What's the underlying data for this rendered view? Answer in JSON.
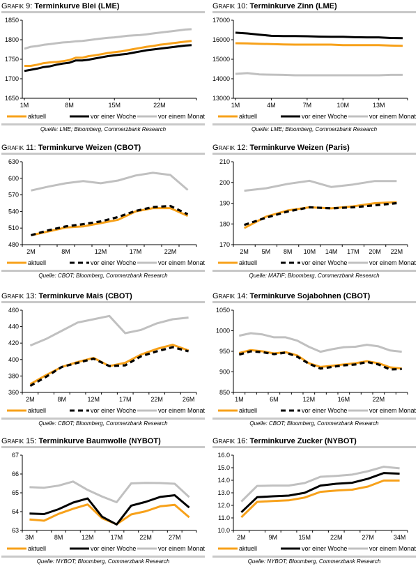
{
  "colors": {
    "aktuell": "#f7a11a",
    "woche": "#000000",
    "monat": "#c0c0c0",
    "rule": "#c8c8c8"
  },
  "legend": {
    "aktuell": "aktuell",
    "woche": "vor einer Woche",
    "monat": "vor einem Monat"
  },
  "chart_data": [
    {
      "id": "g9",
      "type": "line",
      "prefix": "Grafik 9:",
      "title": "Terminkurve Blei (LME)",
      "source": "Quelle: LME; Bloomberg, Commerzbank Research",
      "ylim": [
        1650,
        1850
      ],
      "yticks": [
        1650,
        1700,
        1750,
        1800,
        1850
      ],
      "xlabels": [
        "1M",
        "8M",
        "15M",
        "22M"
      ],
      "xlabel_positions": [
        0,
        7,
        14,
        21
      ],
      "n": 27,
      "centered": false,
      "woche_dashed": false,
      "x": [
        "1M",
        "2M",
        "3M",
        "4M",
        "5M",
        "6M",
        "7M",
        "8M",
        "9M",
        "10M",
        "11M",
        "12M",
        "13M",
        "14M",
        "15M",
        "16M",
        "17M",
        "18M",
        "19M",
        "20M",
        "21M",
        "22M",
        "23M",
        "24M",
        "25M",
        "26M",
        "27M"
      ],
      "series": [
        {
          "name": "aktuell",
          "values": [
            1733,
            1733,
            1736,
            1740,
            1742,
            1743,
            1745,
            1748,
            1754,
            1754,
            1758,
            1760,
            1763,
            1766,
            1768,
            1770,
            1773,
            1776,
            1779,
            1782,
            1784,
            1787,
            1789,
            1791,
            1793,
            1795,
            1797
          ]
        },
        {
          "name": "vor einer Woche",
          "values": [
            1720,
            1723,
            1726,
            1730,
            1732,
            1736,
            1739,
            1741,
            1747,
            1747,
            1749,
            1752,
            1755,
            1758,
            1760,
            1762,
            1764,
            1767,
            1770,
            1773,
            1775,
            1777,
            1779,
            1781,
            1783,
            1785,
            1786
          ]
        },
        {
          "name": "vor einem Monat",
          "values": [
            1777,
            1782,
            1784,
            1787,
            1789,
            1791,
            1793,
            1794,
            1796,
            1797,
            1799,
            1801,
            1803,
            1805,
            1806,
            1808,
            1810,
            1811,
            1812,
            1814,
            1816,
            1818,
            1820,
            1822,
            1824,
            1826,
            1827
          ]
        }
      ]
    },
    {
      "id": "g10",
      "type": "line",
      "prefix": "Grafik 10:",
      "title": "Terminkurve Zinn (LME)",
      "source": "Quelle: LME; Bloomberg, Commerzbank Research",
      "ylim": [
        13000,
        17000
      ],
      "yticks": [
        13000,
        14000,
        15000,
        16000,
        17000
      ],
      "xlabels": [
        "1M",
        "4M",
        "7M",
        "10M",
        "13M"
      ],
      "xlabel_positions": [
        0,
        3,
        6,
        9,
        12
      ],
      "n": 15,
      "centered": false,
      "woche_dashed": false,
      "x": [
        "1M",
        "2M",
        "3M",
        "4M",
        "5M",
        "6M",
        "7M",
        "8M",
        "9M",
        "10M",
        "11M",
        "12M",
        "13M",
        "14M",
        "15M"
      ],
      "series": [
        {
          "name": "aktuell",
          "values": [
            15820,
            15810,
            15790,
            15780,
            15760,
            15750,
            15750,
            15750,
            15750,
            15720,
            15720,
            15720,
            15720,
            15700,
            15690
          ]
        },
        {
          "name": "vor einer Woche",
          "values": [
            16360,
            16320,
            16260,
            16200,
            16190,
            16190,
            16180,
            16160,
            16150,
            16150,
            16130,
            16120,
            16120,
            16090,
            16080
          ]
        },
        {
          "name": "vor einem Monat",
          "values": [
            14250,
            14290,
            14220,
            14210,
            14200,
            14180,
            14180,
            14180,
            14180,
            14180,
            14180,
            14180,
            14180,
            14200,
            14200
          ]
        }
      ]
    },
    {
      "id": "g11",
      "type": "line",
      "prefix": "Grafik 11:",
      "title": "Terminkurve Weizen (CBOT)",
      "source": "Quelle: CBOT; Bloomberg, Commerzbank Research",
      "ylim": [
        480,
        630
      ],
      "yticks": [
        480,
        510,
        540,
        570,
        600,
        630
      ],
      "xlabels": [
        "2M",
        "8M",
        "12M",
        "17M",
        "22M"
      ],
      "xlabel_positions": [
        0,
        2,
        4,
        6,
        8
      ],
      "n": 10,
      "centered": true,
      "woche_dashed": true,
      "x": [
        "2M",
        "5M",
        "8M",
        "10M",
        "12M",
        "15M",
        "17M",
        "20M",
        "22M",
        "25M"
      ],
      "series": [
        {
          "name": "aktuell",
          "values": [
            497,
            504,
            511,
            513,
            519,
            525,
            540,
            546,
            546,
            532
          ]
        },
        {
          "name": "vor einer Woche",
          "values": [
            497,
            506,
            513,
            517,
            522,
            530,
            541,
            548,
            550,
            535
          ]
        },
        {
          "name": "vor einem Monat",
          "values": [
            578,
            585,
            591,
            595,
            591,
            596,
            605,
            610,
            606,
            579
          ]
        }
      ]
    },
    {
      "id": "g12",
      "type": "line",
      "prefix": "Grafik 12:",
      "title": "Terminkurve Weizen (Paris)",
      "source": "Quelle: MATIF; Bloomberg, Commerzbank Research",
      "ylim": [
        170,
        210
      ],
      "yticks": [
        170,
        180,
        190,
        200,
        210
      ],
      "xlabels": [
        "2M",
        "5M",
        "8M",
        "10M",
        "14M",
        "17M",
        "20M",
        "22M"
      ],
      "xlabel_positions": [
        0,
        1,
        2,
        3,
        4,
        5,
        6,
        7
      ],
      "n": 8,
      "centered": true,
      "woche_dashed": true,
      "x": [
        "2M",
        "5M",
        "8M",
        "10M",
        "14M",
        "17M",
        "20M",
        "22M"
      ],
      "series": [
        {
          "name": "aktuell",
          "values": [
            178,
            183.5,
            186.5,
            188,
            187.5,
            188.5,
            190,
            190.5
          ]
        },
        {
          "name": "vor einer Woche",
          "values": [
            179.5,
            183,
            186,
            188,
            187.5,
            188,
            189,
            190
          ]
        },
        {
          "name": "vor einem Monat",
          "values": [
            196,
            197.2,
            199.3,
            200.8,
            197.8,
            199,
            200.7,
            200.7
          ]
        }
      ]
    },
    {
      "id": "g13",
      "type": "line",
      "prefix": "Grafik 13:",
      "title": "Terminkurve Mais (CBOT)",
      "source": "Quelle: CBOT; Bloomberg, Commerzbank Research",
      "ylim": [
        360,
        460
      ],
      "yticks": [
        360,
        380,
        400,
        420,
        440,
        460
      ],
      "xlabels": [
        "2M",
        "8M",
        "12M",
        "17M",
        "22M",
        "26M"
      ],
      "xlabel_positions": [
        0,
        2,
        4,
        6,
        8,
        10
      ],
      "n": 11,
      "centered": true,
      "woche_dashed": true,
      "x": [
        "2M",
        "5M",
        "8M",
        "10M",
        "12M",
        "15M",
        "17M",
        "20M",
        "22M",
        "24M",
        "26M"
      ],
      "series": [
        {
          "name": "aktuell",
          "values": [
            370,
            381,
            391,
            397,
            402,
            392,
            396,
            406,
            413,
            418,
            411
          ]
        },
        {
          "name": "vor einer Woche",
          "values": [
            368,
            379,
            391,
            396,
            401,
            392,
            393,
            404,
            410,
            415,
            410
          ]
        },
        {
          "name": "vor einem Monat",
          "values": [
            417,
            425,
            435,
            445,
            449,
            453,
            432,
            436,
            444,
            449,
            451
          ]
        }
      ]
    },
    {
      "id": "g14",
      "type": "line",
      "prefix": "Grafik 14:",
      "title": "Terminkurve Sojabohnen (CBOT)",
      "source": "Quelle: CBOT; Bloomberg, Commerzbank Research",
      "ylim": [
        850,
        1050
      ],
      "yticks": [
        850,
        900,
        950,
        1000,
        1050
      ],
      "xlabels": [
        "1M",
        "6M",
        "12M",
        "16M",
        "22M"
      ],
      "xlabel_positions": [
        0,
        3,
        6,
        9,
        12
      ],
      "n": 15,
      "centered": true,
      "woche_dashed": true,
      "x": [
        "1M",
        "3M",
        "4M",
        "6M",
        "7M",
        "9M",
        "10M",
        "12M",
        "13M",
        "15M",
        "16M",
        "18M",
        "19M",
        "22M",
        "24M"
      ],
      "series": [
        {
          "name": "aktuell",
          "values": [
            946,
            953,
            950,
            945,
            948,
            940,
            921,
            912,
            915,
            918,
            921,
            926,
            921,
            911,
            908
          ]
        },
        {
          "name": "vor einer Woche",
          "values": [
            942,
            950,
            948,
            943,
            947,
            937,
            920,
            908,
            912,
            916,
            918,
            924,
            918,
            906,
            907
          ]
        },
        {
          "name": "vor einem Monat",
          "values": [
            988,
            994,
            991,
            984,
            984,
            976,
            961,
            949,
            955,
            960,
            961,
            966,
            962,
            952,
            949
          ]
        }
      ]
    },
    {
      "id": "g15",
      "type": "line",
      "prefix": "Grafik 15:",
      "title": "Terminkurve Baumwolle (NYBOT)",
      "source": "Quelle: NYBOT; Bloomberg, Commerzbank Research",
      "ylim": [
        63,
        67
      ],
      "yticks": [
        63,
        64,
        65,
        66,
        67
      ],
      "xlabels": [
        "3M",
        "8M",
        "12M",
        "17M",
        "22M",
        "27M"
      ],
      "xlabel_positions": [
        0,
        2,
        4,
        6,
        8,
        10
      ],
      "n": 12,
      "centered": true,
      "woche_dashed": false,
      "x": [
        "3M",
        "5M",
        "8M",
        "10M",
        "12M",
        "15M",
        "17M",
        "20M",
        "22M",
        "25M",
        "27M",
        "30M"
      ],
      "series": [
        {
          "name": "aktuell",
          "values": [
            63.58,
            63.52,
            63.88,
            64.15,
            64.38,
            63.65,
            63.33,
            63.85,
            64.02,
            64.28,
            64.36,
            63.7
          ]
        },
        {
          "name": "vor einer Woche",
          "values": [
            63.9,
            63.87,
            64.13,
            64.48,
            64.7,
            63.73,
            63.32,
            64.32,
            64.52,
            64.78,
            64.87,
            64.22
          ]
        },
        {
          "name": "vor einem Monat",
          "values": [
            65.3,
            65.27,
            65.38,
            65.6,
            65.15,
            64.8,
            64.5,
            65.5,
            65.53,
            65.52,
            65.48,
            64.77
          ]
        }
      ]
    },
    {
      "id": "g16",
      "type": "line",
      "prefix": "Grafik 16:",
      "title": "Terminkurve Zucker (NYBOT)",
      "source": "Quelle: NYBOT; Bloomberg, Commerzbank Research",
      "ylim": [
        10.0,
        16.0
      ],
      "yticks": [
        10.0,
        11.0,
        12.0,
        13.0,
        14.0,
        15.0,
        16.0
      ],
      "ydecimals": 1,
      "xlabels": [
        "2M",
        "9M",
        "15M",
        "22M",
        "27M",
        "34M"
      ],
      "xlabel_positions": [
        0,
        2,
        4,
        6,
        8,
        10
      ],
      "n": 11,
      "centered": true,
      "woche_dashed": false,
      "x": [
        "2M",
        "6M",
        "9M",
        "12M",
        "15M",
        "18M",
        "22M",
        "25M",
        "27M",
        "31M",
        "34M"
      ],
      "series": [
        {
          "name": "aktuell",
          "values": [
            11.05,
            12.28,
            12.35,
            12.4,
            12.62,
            13.08,
            13.18,
            13.25,
            13.5,
            13.98,
            13.98
          ]
        },
        {
          "name": "vor einer Woche",
          "values": [
            11.45,
            12.65,
            12.72,
            12.78,
            13.0,
            13.58,
            13.72,
            13.8,
            14.12,
            14.58,
            14.53
          ]
        },
        {
          "name": "vor einem Monat",
          "values": [
            12.3,
            13.55,
            13.58,
            13.58,
            13.78,
            14.28,
            14.35,
            14.45,
            14.72,
            15.08,
            14.95
          ]
        }
      ]
    }
  ]
}
